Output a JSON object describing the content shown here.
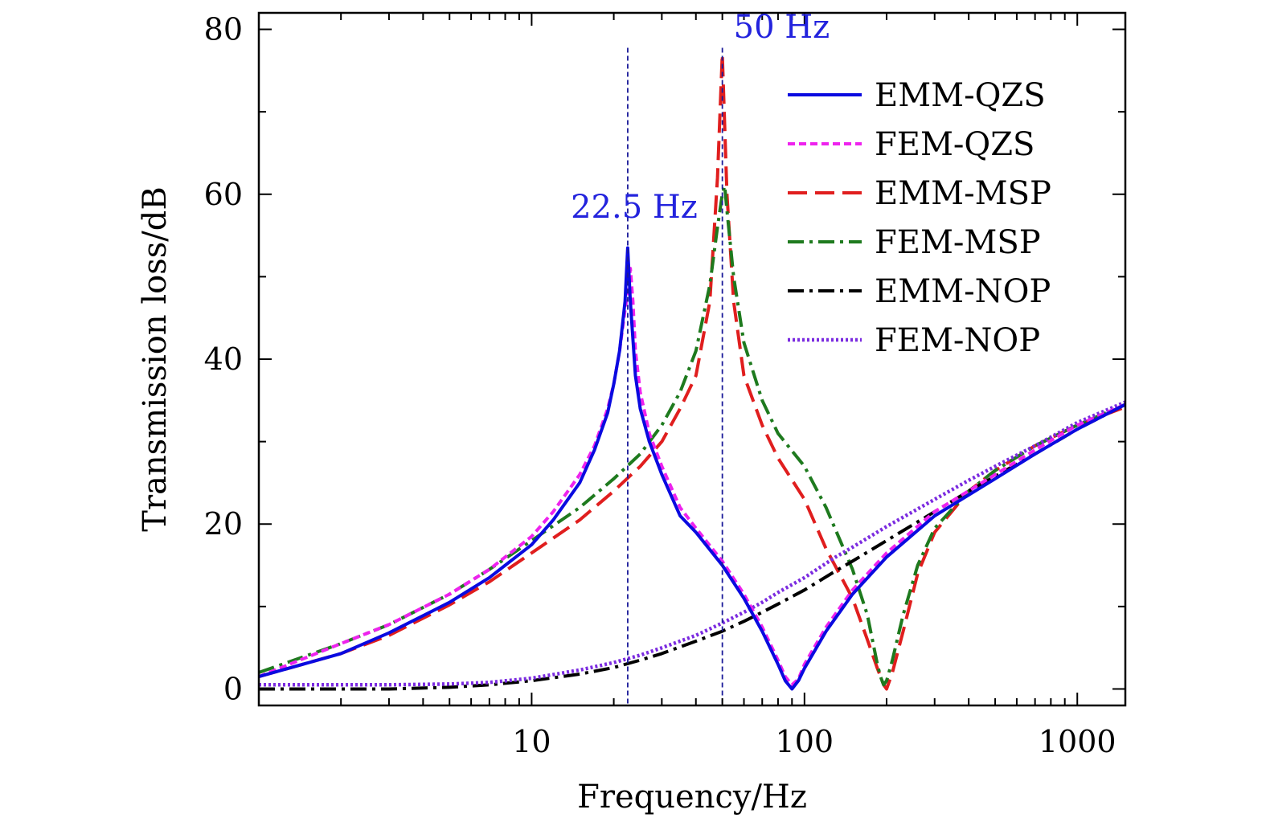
{
  "chart_data": {
    "type": "line",
    "title": "",
    "xlabel": "Frequency/Hz",
    "ylabel": "Transmission loss/dB",
    "xscale": "log",
    "xlim": [
      1,
      1500
    ],
    "ylim": [
      -2,
      82
    ],
    "xticks": [
      10,
      100,
      1000
    ],
    "xtick_labels": [
      "10",
      "100",
      "1000"
    ],
    "yticks": [
      0,
      20,
      40,
      60,
      80
    ],
    "ytick_labels": [
      "0",
      "20",
      "40",
      "60",
      "80"
    ],
    "grid": false,
    "legend_position": "top-right",
    "annotations": [
      {
        "text": "22.5 Hz",
        "x": 22.5,
        "y": 55,
        "color": "#2323dd"
      },
      {
        "text": "50 Hz",
        "x": 50,
        "y": 79,
        "color": "#2323dd"
      }
    ],
    "reference_lines": [
      {
        "x": 22.5,
        "color": "#1a1a99"
      },
      {
        "x": 50,
        "color": "#1a1a99"
      }
    ],
    "series": [
      {
        "name": "EMM-QZS",
        "color": "#0a0ae0",
        "dash": "solid",
        "x": [
          1,
          2,
          3,
          5,
          7,
          10,
          12,
          15,
          17,
          19,
          20,
          21,
          22,
          22.5,
          23,
          24,
          25,
          27,
          30,
          35,
          40,
          50,
          60,
          70,
          80,
          85,
          90,
          95,
          100,
          120,
          150,
          200,
          300,
          500,
          700,
          1000,
          1500
        ],
        "y": [
          1.5,
          4.3,
          6.8,
          10.5,
          13.5,
          17.5,
          20.5,
          25,
          29,
          33.5,
          37,
          41,
          47,
          53.5,
          47,
          38,
          34,
          30,
          26,
          21,
          19,
          15,
          11,
          7,
          3,
          1,
          0,
          1,
          2.5,
          7,
          11.5,
          16,
          21,
          25.5,
          28.5,
          31.5,
          34.5
        ]
      },
      {
        "name": "FEM-QZS",
        "color": "#ee22ee",
        "dash": "short",
        "x": [
          1,
          2,
          3,
          5,
          7,
          10,
          12,
          15,
          17,
          19,
          20,
          21,
          22,
          22.5,
          23,
          23.5,
          24,
          25,
          27,
          30,
          35,
          40,
          50,
          60,
          70,
          80,
          85,
          90,
          95,
          100,
          120,
          150,
          200,
          300,
          500,
          700,
          1000,
          1500
        ],
        "y": [
          1.5,
          5.5,
          7.8,
          11.5,
          14.5,
          18.5,
          21.5,
          26,
          29.5,
          34,
          37,
          41,
          46,
          48,
          51,
          47,
          41,
          36,
          31,
          27,
          22,
          19.5,
          15.5,
          11.5,
          7.5,
          3.5,
          1.5,
          0.5,
          1.2,
          3,
          7.5,
          12,
          16.5,
          21.5,
          26,
          29,
          32,
          34.5
        ]
      },
      {
        "name": "EMM-MSP",
        "color": "#e01e1e",
        "dash": "long",
        "x": [
          1,
          2,
          3,
          5,
          7,
          10,
          15,
          20,
          25,
          30,
          35,
          40,
          45,
          48,
          50,
          52,
          55,
          60,
          70,
          80,
          100,
          120,
          150,
          170,
          185,
          195,
          200,
          210,
          230,
          260,
          300,
          400,
          500,
          700,
          1000,
          1500
        ],
        "y": [
          1.5,
          4.3,
          6.5,
          10.2,
          13,
          16.5,
          20.5,
          24,
          27,
          30,
          34,
          38,
          47,
          62,
          77,
          60,
          47,
          38,
          32,
          28,
          23,
          17,
          11,
          6,
          2.5,
          0.5,
          0,
          2,
          7,
          14,
          19,
          24,
          26.5,
          29.5,
          32,
          34.2
        ]
      },
      {
        "name": "FEM-MSP",
        "color": "#1e7a1e",
        "dash": "dashdot",
        "x": [
          1,
          2,
          3,
          5,
          7,
          10,
          15,
          20,
          25,
          30,
          35,
          40,
          45,
          48,
          50,
          51,
          52,
          55,
          60,
          70,
          80,
          100,
          120,
          150,
          170,
          185,
          190,
          195,
          200,
          210,
          230,
          260,
          300,
          400,
          500,
          700,
          1000,
          1500
        ],
        "y": [
          2,
          5.5,
          7.8,
          11.5,
          14.5,
          18,
          22,
          25.5,
          28.5,
          32,
          36,
          41,
          49,
          56,
          60,
          61,
          58,
          50,
          42,
          35,
          31,
          27,
          22,
          14.5,
          9,
          3,
          1.5,
          0.5,
          1,
          3.5,
          9,
          15,
          19.5,
          24,
          26.5,
          29.5,
          32,
          34.5
        ]
      },
      {
        "name": "EMM-NOP",
        "color": "#000000",
        "dash": "dashdot",
        "x": [
          1,
          2,
          3,
          5,
          7,
          10,
          15,
          20,
          25,
          30,
          40,
          50,
          60,
          70,
          80,
          100,
          130,
          150,
          200,
          300,
          400,
          500,
          700,
          1000,
          1500
        ],
        "y": [
          0,
          0,
          0,
          0.2,
          0.5,
          1,
          1.8,
          2.6,
          3.5,
          4.3,
          5.8,
          7,
          8.2,
          9.3,
          10.3,
          12,
          14.3,
          15.5,
          18,
          21.5,
          24,
          25.8,
          28.5,
          31.5,
          34.5
        ]
      },
      {
        "name": "FEM-NOP",
        "color": "#7b2be0",
        "dash": "dotted",
        "x": [
          1,
          2,
          3,
          5,
          7,
          10,
          15,
          20,
          25,
          30,
          40,
          50,
          60,
          70,
          80,
          100,
          130,
          150,
          200,
          300,
          400,
          500,
          700,
          1000,
          1500
        ],
        "y": [
          0.5,
          0.5,
          0.5,
          0.6,
          0.8,
          1.3,
          2.3,
          3.2,
          4.1,
          5,
          6.5,
          8,
          9.3,
          10.5,
          11.7,
          13.5,
          16,
          17.2,
          19.7,
          23,
          25.3,
          27,
          29.5,
          32.3,
          34.8
        ]
      }
    ]
  }
}
